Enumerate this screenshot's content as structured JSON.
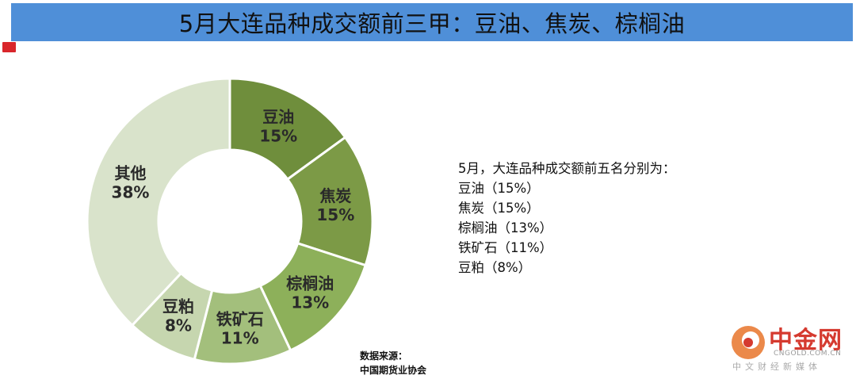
{
  "header": {
    "title": "5月大连品种成交额前三甲：豆油、焦炭、棕榈油"
  },
  "colors": {
    "title_bg": "#4f8fd8",
    "corner_mark": "#d9262b",
    "slices": [
      "#6f8e3c",
      "#7c9a46",
      "#8db05a",
      "#a3bf7c",
      "#c6d6af",
      "#d9e3cb"
    ]
  },
  "chart_data": {
    "type": "pie",
    "donut": true,
    "categories": [
      "豆油",
      "焦炭",
      "棕榈油",
      "铁矿石",
      "豆粕",
      "其他"
    ],
    "values": [
      15,
      15,
      13,
      11,
      8,
      38
    ],
    "value_labels": [
      "15%",
      "15%",
      "13%",
      "11%",
      "8%",
      "38%"
    ]
  },
  "summary": {
    "heading": "5月，大连品种成交额前五名分别为：",
    "items": [
      "豆油（15%）",
      "焦炭（15%）",
      "棕榈油（13%）",
      "铁矿石（11%）",
      "豆粕（8%）"
    ]
  },
  "source": {
    "label": "数据来源：",
    "org": "中国期货业协会"
  },
  "watermark": {
    "brand": "中金网",
    "url": "CNGOLD.COM.CN",
    "tagline": "中文财经新媒体"
  }
}
